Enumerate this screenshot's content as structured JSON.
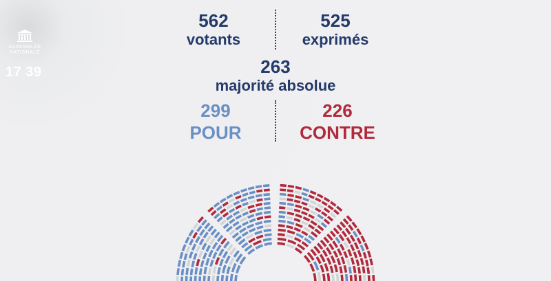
{
  "logo": {
    "text": "ASSEMBLÉE NATIONALE",
    "icon": "assembly-building-icon"
  },
  "clock": "17 39",
  "votants": {
    "value": "562",
    "label": "votants"
  },
  "exprimes": {
    "value": "525",
    "label": "exprimés"
  },
  "majorite": {
    "value": "263",
    "label": "majorité absolue"
  },
  "pour": {
    "value": "299",
    "label": "POUR"
  },
  "contre": {
    "value": "226",
    "label": "CONTRE"
  },
  "colors": {
    "navy": "#233a6a",
    "pour": "#6a8fc4",
    "contre": "#b02a3c",
    "absent": "#d3d4d6",
    "background": "#efeff1"
  }
}
